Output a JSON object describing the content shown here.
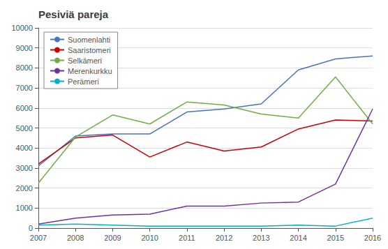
{
  "chart_data": {
    "type": "line",
    "title": "Pesiviä pareja",
    "x": [
      2007,
      2008,
      2009,
      2010,
      2011,
      2012,
      2013,
      2014,
      2015,
      2016
    ],
    "series": [
      {
        "name": "Suomenlahti",
        "color": "#4472C4",
        "values": [
          3100,
          4600,
          4700,
          4700,
          5800,
          5950,
          6200,
          7900,
          8450,
          8600
        ]
      },
      {
        "name": "Saaristomeri",
        "color": "#CC0000",
        "values": [
          3200,
          4500,
          4650,
          3550,
          4300,
          3850,
          4050,
          4950,
          5400,
          5350
        ]
      },
      {
        "name": "Selkämeri",
        "color": "#70AD47",
        "values": [
          2250,
          4550,
          5650,
          5200,
          6300,
          6150,
          5700,
          5500,
          7550,
          5200
        ]
      },
      {
        "name": "Merenkurkku",
        "color": "#7030A0",
        "values": [
          200,
          500,
          650,
          700,
          1100,
          1100,
          1250,
          1300,
          2200,
          5950
        ]
      },
      {
        "name": "Perämeri",
        "color": "#00B0D0",
        "values": [
          150,
          200,
          150,
          100,
          100,
          100,
          100,
          150,
          100,
          500
        ]
      }
    ],
    "xlim": [
      2007,
      2016
    ],
    "xticks": [
      2007,
      2008,
      2009,
      2010,
      2011,
      2012,
      2013,
      2014,
      2015,
      2016
    ],
    "ylim": [
      0,
      10000
    ],
    "yticks": [
      0,
      1000,
      2000,
      3000,
      4000,
      5000,
      6000,
      7000,
      8000,
      9000,
      10000
    ],
    "grid": true,
    "legend": "upper left"
  }
}
